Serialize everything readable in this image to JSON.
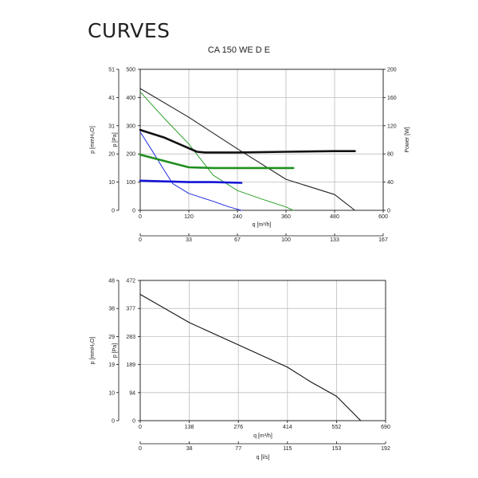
{
  "page": {
    "heading": "CURVES",
    "chart_title": "CA 150 WE D E"
  },
  "chart_data": [
    {
      "type": "line",
      "title": "CA 150 WE D E",
      "xlabel": "q [m³/h]",
      "xlim": [
        0,
        600
      ],
      "x_ticks": [
        "0",
        "120",
        "240",
        "360",
        "480",
        "600"
      ],
      "x2label": "",
      "x2_ticks": [
        "0",
        "33",
        "67",
        "100",
        "133",
        "167"
      ],
      "ylabel": "p [Pa]",
      "ylim": [
        0,
        500
      ],
      "y_ticks": [
        "0",
        "100",
        "200",
        "300",
        "400",
        "500"
      ],
      "y_outer_label": "p [mmH₂O]",
      "y_outer_ticks": [
        "0",
        "10",
        "20",
        "31",
        "41",
        "51"
      ],
      "y2label": "Power [W]",
      "y2lim": [
        0,
        200
      ],
      "y2_ticks": [
        "0",
        "40",
        "80",
        "120",
        "160",
        "200"
      ],
      "grid": true,
      "series": [
        {
          "axis": "pressure",
          "color": "#222222",
          "width": 1.1,
          "x": [
            0,
            120,
            240,
            360,
            480,
            530
          ],
          "y": [
            432,
            330,
            218,
            110,
            56,
            0
          ]
        },
        {
          "axis": "pressure",
          "color": "#2ca02c",
          "width": 1.0,
          "x": [
            0,
            60,
            120,
            180,
            240,
            300,
            360,
            378
          ],
          "y": [
            420,
            325,
            235,
            125,
            70,
            40,
            12,
            0
          ]
        },
        {
          "axis": "pressure",
          "color": "#1f2ee0",
          "width": 1.0,
          "x": [
            0,
            30,
            60,
            80,
            120,
            180,
            220,
            250
          ],
          "y": [
            278,
            210,
            140,
            95,
            60,
            32,
            12,
            0
          ]
        },
        {
          "axis": "power",
          "color": "#111111",
          "width": 2.6,
          "x": [
            0,
            60,
            120,
            140,
            160,
            240,
            360,
            480,
            530
          ],
          "y": [
            114,
            103,
            88,
            83,
            82,
            82,
            83,
            84,
            84
          ]
        },
        {
          "axis": "power",
          "color": "#1e8f1e",
          "width": 2.6,
          "x": [
            0,
            60,
            120,
            180,
            240,
            300,
            378
          ],
          "y": [
            79,
            70,
            61,
            60,
            60,
            60,
            60
          ]
        },
        {
          "axis": "power",
          "color": "#1414d6",
          "width": 2.6,
          "x": [
            0,
            60,
            120,
            180,
            250
          ],
          "y": [
            42,
            41,
            40,
            40,
            39
          ]
        }
      ]
    },
    {
      "type": "line",
      "title": "",
      "xlabel": "q [m³/h]",
      "xlim": [
        0,
        690
      ],
      "x_ticks": [
        "0",
        "138",
        "276",
        "414",
        "552",
        "690"
      ],
      "x2label": "q [l/s]",
      "x2_ticks": [
        "0",
        "38",
        "77",
        "115",
        "153",
        "192"
      ],
      "ylabel": "p [Pa]",
      "ylim": [
        0,
        472
      ],
      "y_ticks": [
        "0",
        "94",
        "189",
        "283",
        "377",
        "472"
      ],
      "y_outer_label": "p [mmH₂O]",
      "y_outer_ticks": [
        "0",
        "10",
        "19",
        "29",
        "38",
        "48"
      ],
      "grid": true,
      "series": [
        {
          "axis": "pressure",
          "color": "#111111",
          "width": 1.1,
          "x": [
            0,
            138,
            276,
            414,
            480,
            552,
            620
          ],
          "y": [
            425,
            330,
            255,
            180,
            130,
            82,
            0
          ]
        }
      ]
    }
  ]
}
